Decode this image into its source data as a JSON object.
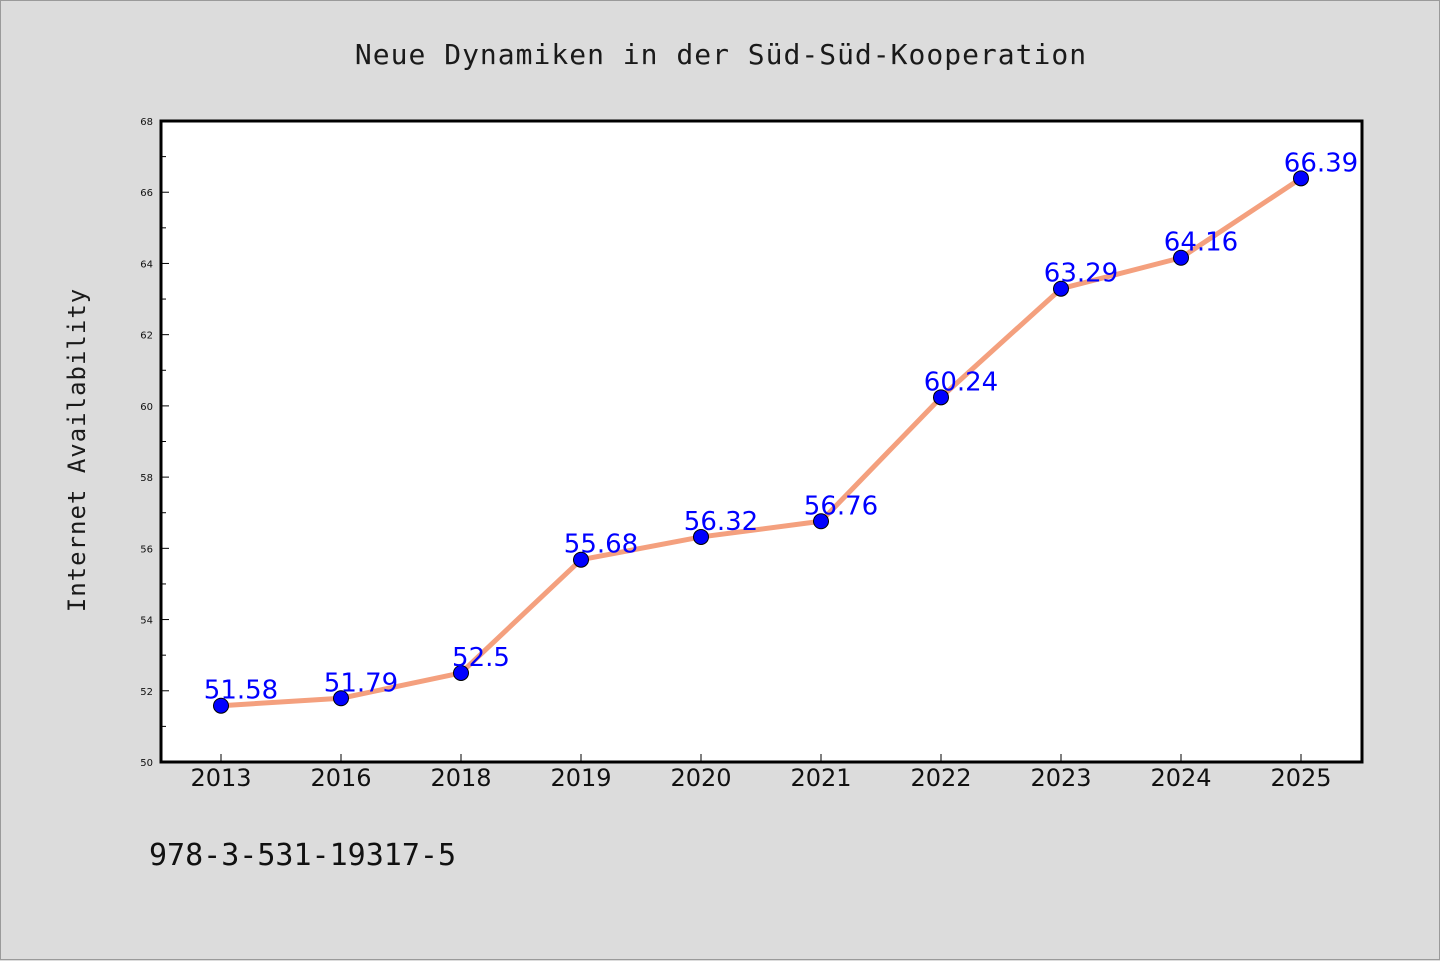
{
  "chart_data": {
    "type": "line",
    "title": "Neue Dynamiken in der Süd-Süd-Kooperation",
    "xlabel": "",
    "ylabel": "Internet Availability",
    "categories": [
      "2013",
      "2016",
      "2018",
      "2019",
      "2020",
      "2021",
      "2022",
      "2023",
      "2024",
      "2025"
    ],
    "series": [
      {
        "values": [
          51.58,
          51.79,
          52.5,
          55.68,
          56.32,
          56.76,
          60.24,
          63.29,
          64.16,
          66.39
        ],
        "labels": [
          "51.58",
          "51.79",
          "52.5",
          "55.68",
          "56.32",
          "56.76",
          "60.24",
          "63.29",
          "64.16",
          "66.39"
        ]
      }
    ],
    "ylim": [
      50,
      68
    ],
    "yticks": [
      "50",
      "52",
      "54",
      "56",
      "58",
      "60",
      "62",
      "64",
      "66",
      "68"
    ],
    "grid": false,
    "legend": "none",
    "colors": {
      "line": "#f4a07e",
      "marker": "#0000ff",
      "label": "#0000ff",
      "background": "#dcdcdc",
      "plot_background": "#ffffff"
    }
  },
  "footnote": "978-3-531-19317-5"
}
